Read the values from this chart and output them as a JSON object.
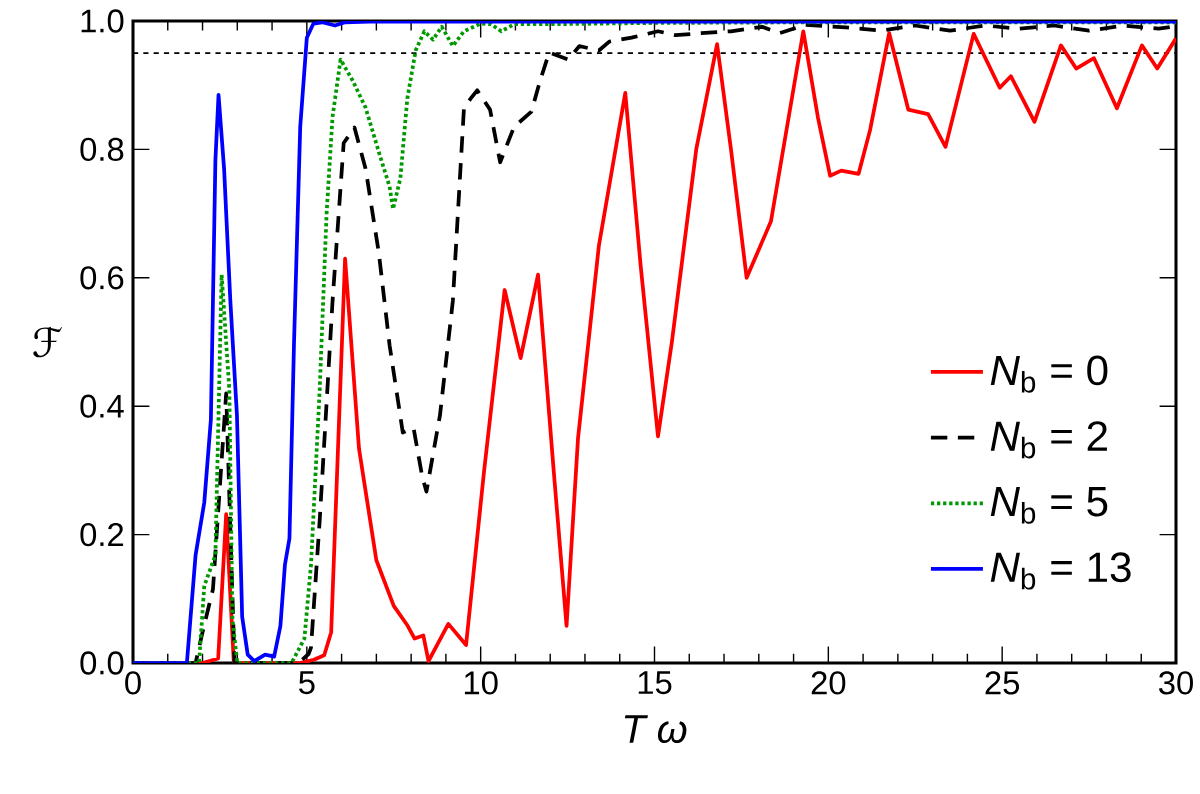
{
  "chart_data": {
    "type": "line",
    "xlabel": "T ω",
    "ylabel": "ℱ",
    "xlim": [
      0,
      30
    ],
    "ylim": [
      0,
      1.0
    ],
    "xticks": [
      0,
      5,
      10,
      15,
      20,
      25,
      30
    ],
    "yticks": [
      {
        "value": 0,
        "label": "0.0"
      },
      {
        "value": 0.2,
        "label": "0.2"
      },
      {
        "value": 0.4,
        "label": "0.4"
      },
      {
        "value": 0.6,
        "label": "0.6"
      },
      {
        "value": 0.8,
        "label": "0.8"
      },
      {
        "value": 1.0,
        "label": "1.0"
      }
    ],
    "legend": "right",
    "grid": false,
    "marker": "none",
    "ref_lines": [
      {
        "axis": "y",
        "value": 0.95,
        "color": "#000000",
        "line_style": "dashed"
      }
    ],
    "series": [
      {
        "name": "*N*$_{b}$ = 0",
        "color": "#ff0000",
        "line_style": "solid",
        "x": [
          0,
          2,
          2.45,
          2.68,
          2.9,
          4.8,
          5.2,
          5.5,
          5.7,
          6.1,
          6.5,
          7.0,
          7.5,
          7.9,
          8.1,
          8.35,
          8.5,
          9.07,
          9.58,
          10.1,
          10.69,
          11.15,
          11.65,
          12.1,
          12.47,
          12.8,
          13.4,
          14.16,
          14.6,
          15.1,
          15.5,
          16.2,
          16.8,
          17.2,
          17.65,
          18.35,
          19.28,
          19.7,
          20.05,
          20.37,
          20.87,
          21.2,
          21.75,
          22.3,
          22.87,
          23.37,
          24.18,
          24.93,
          25.25,
          25.93,
          26.69,
          27.13,
          27.64,
          28.3,
          29.02,
          29.46,
          30
        ],
        "values": [
          0,
          0,
          0.007,
          0.232,
          0,
          0,
          0.005,
          0.012,
          0.048,
          0.63,
          0.334,
          0.16,
          0.089,
          0.058,
          0.038,
          0.043,
          0.003,
          0.061,
          0.028,
          0.3,
          0.581,
          0.475,
          0.605,
          0.3,
          0.058,
          0.35,
          0.65,
          0.888,
          0.62,
          0.353,
          0.5,
          0.8,
          0.964,
          0.8,
          0.6,
          0.688,
          0.984,
          0.85,
          0.759,
          0.767,
          0.762,
          0.83,
          0.981,
          0.862,
          0.855,
          0.804,
          0.98,
          0.896,
          0.914,
          0.843,
          0.962,
          0.926,
          0.942,
          0.864,
          0.962,
          0.926,
          0.973
        ]
      },
      {
        "name": "*N*$_{b}$ = 2",
        "color": "#000000",
        "line_style": "dashed",
        "x": [
          0,
          1.8,
          2.0,
          2.3,
          2.68,
          2.92,
          4.76,
          5.05,
          5.12,
          5.37,
          5.74,
          6.06,
          6.37,
          6.69,
          7.07,
          7.38,
          7.76,
          8.07,
          8.32,
          8.44,
          8.83,
          9.2,
          9.52,
          9.71,
          9.9,
          10.27,
          10.56,
          10.96,
          11.46,
          11.71,
          11.97,
          12.52,
          12.84,
          13.4,
          13.7,
          14.34,
          15.1,
          15.6,
          16.34,
          17.2,
          18.1,
          18.6,
          19.35,
          20.5,
          21.5,
          22.5,
          23.5,
          24.5,
          25.5,
          26.5,
          27.5,
          28.5,
          29.5,
          30
        ],
        "values": [
          0,
          0,
          0.048,
          0.115,
          0.42,
          0,
          0,
          0.014,
          0.024,
          0.222,
          0.564,
          0.81,
          0.834,
          0.77,
          0.639,
          0.495,
          0.359,
          0.366,
          0.29,
          0.267,
          0.386,
          0.564,
          0.865,
          0.879,
          0.892,
          0.862,
          0.78,
          0.835,
          0.859,
          0.907,
          0.951,
          0.94,
          0.961,
          0.954,
          0.968,
          0.974,
          0.984,
          0.978,
          0.981,
          0.984,
          0.991,
          0.981,
          0.994,
          0.99,
          0.985,
          0.993,
          0.985,
          0.993,
          0.988,
          0.993,
          0.985,
          0.993,
          0.988,
          0.992
        ]
      },
      {
        "name": "*N*$_{b}$ = 5",
        "color": "#009900",
        "line_style": "dotted",
        "x": [
          0,
          1.9,
          2.05,
          2.37,
          2.55,
          2.77,
          2.86,
          3.0,
          4.56,
          4.93,
          5.12,
          5.37,
          5.57,
          5.74,
          5.97,
          6.32,
          6.69,
          7.07,
          7.38,
          7.48,
          7.69,
          7.89,
          8.13,
          8.38,
          8.63,
          8.88,
          9.2,
          9.52,
          10.0,
          10.3,
          10.59,
          10.97,
          12,
          15,
          20,
          30
        ],
        "values": [
          0,
          0,
          0.12,
          0.168,
          0.605,
          0.426,
          0.069,
          0,
          0,
          0.038,
          0.153,
          0.426,
          0.702,
          0.851,
          0.94,
          0.907,
          0.865,
          0.796,
          0.742,
          0.707,
          0.755,
          0.879,
          0.954,
          0.984,
          0.971,
          0.991,
          0.961,
          0.984,
          0.996,
          0.995,
          0.984,
          0.995,
          0.995,
          0.997,
          0.998,
          0.998
        ]
      },
      {
        "name": "*N*$_{b}$ = 13",
        "color": "#0000ff",
        "line_style": "solid",
        "x": [
          0,
          1.55,
          1.8,
          2.05,
          2.24,
          2.37,
          2.46,
          2.62,
          2.8,
          2.99,
          3.14,
          3.3,
          3.49,
          3.8,
          4.06,
          4.24,
          4.37,
          4.5,
          4.63,
          4.81,
          5.0,
          5.19,
          5.44,
          5.81,
          6.1,
          6.8,
          8,
          30
        ],
        "values": [
          0,
          0,
          0.168,
          0.25,
          0.379,
          0.783,
          0.885,
          0.77,
          0.564,
          0.386,
          0.072,
          0.013,
          0.003,
          0.013,
          0.01,
          0.058,
          0.153,
          0.194,
          0.496,
          0.835,
          0.974,
          0.996,
          0.998,
          0.993,
          0.998,
          0.999,
          0.999,
          0.999
        ]
      }
    ]
  }
}
